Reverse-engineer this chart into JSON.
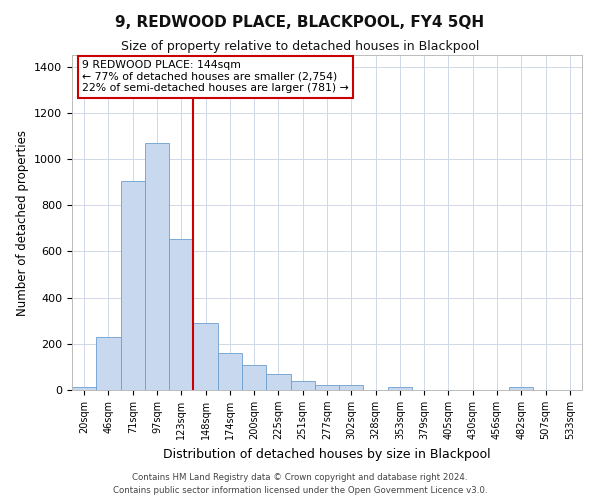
{
  "title": "9, REDWOOD PLACE, BLACKPOOL, FY4 5QH",
  "subtitle": "Size of property relative to detached houses in Blackpool",
  "xlabel": "Distribution of detached houses by size in Blackpool",
  "ylabel": "Number of detached properties",
  "bar_color": "#c8d8ee",
  "bar_edge_color": "#6b9fcf",
  "bin_labels": [
    "20sqm",
    "46sqm",
    "71sqm",
    "97sqm",
    "123sqm",
    "148sqm",
    "174sqm",
    "200sqm",
    "225sqm",
    "251sqm",
    "277sqm",
    "302sqm",
    "328sqm",
    "353sqm",
    "379sqm",
    "405sqm",
    "430sqm",
    "456sqm",
    "482sqm",
    "507sqm",
    "533sqm"
  ],
  "bar_heights": [
    15,
    228,
    903,
    1071,
    655,
    291,
    158,
    107,
    68,
    40,
    23,
    20,
    0,
    15,
    0,
    0,
    0,
    0,
    12,
    0,
    0
  ],
  "vline_x_index": 5,
  "vline_color": "#cc0000",
  "annotation_lines": [
    "9 REDWOOD PLACE: 144sqm",
    "← 77% of detached houses are smaller (2,754)",
    "22% of semi-detached houses are larger (781) →"
  ],
  "ylim": [
    0,
    1450
  ],
  "yticks": [
    0,
    200,
    400,
    600,
    800,
    1000,
    1200,
    1400
  ],
  "footnote": "Contains HM Land Registry data © Crown copyright and database right 2024.\nContains public sector information licensed under the Open Government Licence v3.0.",
  "background_color": "#ffffff",
  "grid_color": "#d0d8e8"
}
